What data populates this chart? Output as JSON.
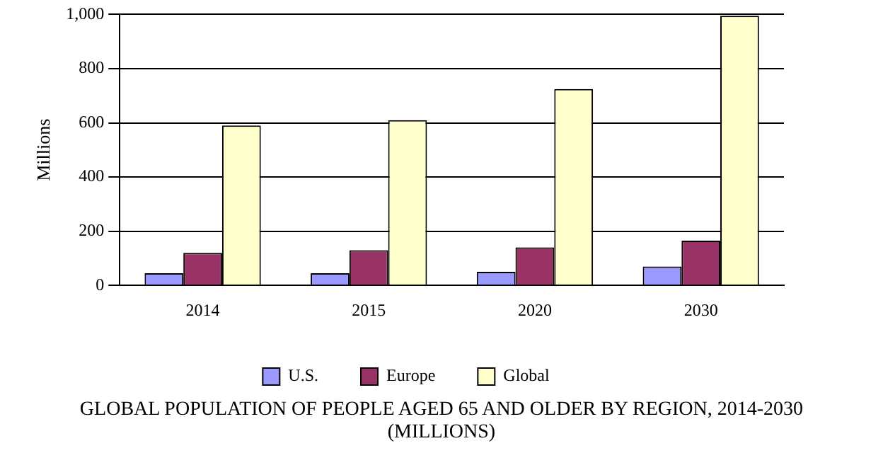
{
  "chart_data": {
    "type": "bar",
    "title": "GLOBAL POPULATION OF PEOPLE AGED 65 AND OLDER BY REGION, 2014-2030 (MILLIONS)",
    "ylabel": "Millions",
    "categories": [
      "2014",
      "2015",
      "2020",
      "2030"
    ],
    "series": [
      {
        "name": "U.S.",
        "color": "#9999ff",
        "values": [
          45,
          45,
          50,
          70
        ]
      },
      {
        "name": "Europe",
        "color": "#993366",
        "values": [
          120,
          130,
          140,
          165
        ]
      },
      {
        "name": "Global",
        "color": "#ffffcc",
        "values": [
          590,
          610,
          725,
          995
        ]
      }
    ],
    "ylim": [
      0,
      1000
    ],
    "yticks": [
      0,
      200,
      400,
      600,
      800,
      {
        "value": 1000,
        "label": "1,000"
      }
    ],
    "grid": "y",
    "legend": "bottom"
  }
}
